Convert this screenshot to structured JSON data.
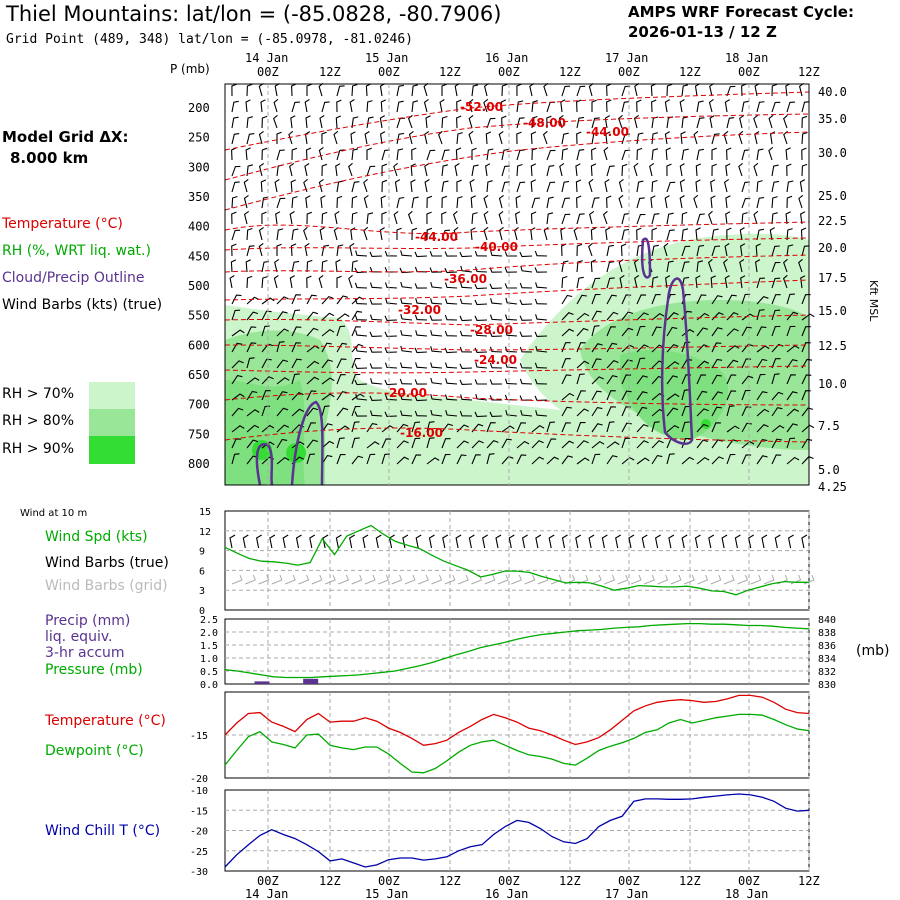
{
  "header": {
    "title": "Thiel Mountains:  lat/lon = (-85.0828, -80.7906)",
    "grid_point": "Grid Point (489, 348) lat/lon = (-85.0978, -81.0246)",
    "forecast_label": "AMPS WRF Forecast Cycle:",
    "forecast_cycle": "2026-01-13 / 12  Z"
  },
  "side": {
    "model_grid_label": "Model Grid ΔX:",
    "model_grid_value": "8.000 km",
    "legend_temperature": "Temperature (°C)",
    "legend_rh": "RH (%, WRT liq. wat.)",
    "legend_cloud": "Cloud/Precip Outline",
    "legend_wind": "Wind Barbs (kts) (true)",
    "rh70": "RH > 70%",
    "rh80": "RH > 80%",
    "rh90": "RH > 90%",
    "wind10_label": "Wind at 10 m",
    "wind_spd": "Wind Spd (kts)",
    "wind_barbs_true": "Wind Barbs (true)",
    "wind_barbs_grid": "Wind Barbs (grid)",
    "precip_l1": "Precip (mm)",
    "precip_l2": "liq. equiv.",
    "precip_l3": "3-hr accum",
    "pressure": "Pressure (mb)",
    "mb_unit": "(mb)",
    "temperature": "Temperature (°C)",
    "dewpoint": "Dewpoint (°C)",
    "windchill": "Wind Chill T (°C)",
    "p_unit": "P (mb)",
    "kft_label": "Kft MSL"
  },
  "colors": {
    "temperature": "#dd0000",
    "rh": "#00aa00",
    "cloud": "#5a3390",
    "wind": "#000000",
    "wind_grid": "#aaaaaa",
    "pressure": "#00aa00",
    "windchill": "#0000aa",
    "rh70": "#ccf5cc",
    "rh80": "#99e699",
    "rh90": "#33dd33",
    "grid": "#aaaaaa"
  },
  "chart_data": [
    {
      "type": "heatmap",
      "name": "vertical_profile",
      "x_ticks_top": [
        "00Z",
        "12Z",
        "00Z",
        "12Z",
        "00Z",
        "12Z",
        "00Z",
        "12Z",
        "00Z",
        "12Z"
      ],
      "x_ticks_bottom": [
        "00Z",
        "12Z",
        "00Z",
        "12Z",
        "00Z",
        "12Z",
        "00Z",
        "12Z",
        "00Z",
        "12Z"
      ],
      "day_labels": [
        "14 Jan",
        "15 Jan",
        "16 Jan",
        "17 Jan",
        "18 Jan"
      ],
      "pressure_ticks": [
        200,
        250,
        300,
        350,
        400,
        450,
        500,
        550,
        600,
        650,
        700,
        750,
        800
      ],
      "kft_ticks": [
        "40.0",
        "35.0",
        "30.0",
        "25.0",
        "22.5",
        "20.0",
        "17.5",
        "15.0",
        "12.5",
        "10.0",
        "7.5",
        "5.0",
        "4.25"
      ],
      "temperature_isotherms": [
        "-52.00",
        "-48.00",
        "-44.00",
        "-44.00",
        "-40.00",
        "-36.00",
        "-32.00",
        "-28.00",
        "-24.00",
        "-20.00",
        "-16.00"
      ],
      "rh_levels": [
        "> 70%",
        "> 80%",
        "> 90%"
      ]
    },
    {
      "type": "line",
      "name": "wind_speed_10m",
      "ylim": [
        0,
        15
      ],
      "y_ticks": [
        0,
        3,
        6,
        9,
        12,
        15
      ],
      "x_hours": [
        0,
        3,
        6,
        9,
        12,
        15,
        18,
        21,
        24,
        27,
        30,
        33,
        36,
        39,
        42,
        45,
        48,
        51,
        54,
        57,
        60,
        63,
        66,
        69,
        72,
        75,
        78,
        81,
        84,
        87,
        90,
        93,
        96,
        99,
        102,
        105,
        108,
        111,
        114,
        117,
        120,
        123,
        126,
        129,
        132,
        135,
        138,
        141,
        144
      ],
      "values": [
        9.5,
        8.6,
        7.8,
        7.4,
        7.3,
        7.1,
        6.8,
        7.2,
        10.8,
        8.4,
        11.2,
        12.0,
        12.8,
        11.5,
        10.4,
        9.8,
        9.3,
        8.3,
        7.4,
        6.7,
        6.0,
        5.0,
        5.4,
        5.9,
        5.9,
        5.7,
        5.1,
        4.6,
        4.1,
        4.2,
        4.1,
        3.6,
        3.0,
        3.3,
        3.7,
        3.6,
        3.5,
        3.5,
        3.6,
        3.3,
        2.9,
        2.8,
        2.3,
        3.0,
        3.5,
        4.0,
        4.3,
        4.2,
        4.2
      ]
    },
    {
      "type": "line",
      "name": "pressure_precip",
      "precip_ylim": [
        0,
        2.5
      ],
      "precip_ticks": [
        "0.0",
        "0.5",
        "1.0",
        "1.5",
        "2.0",
        "2.5"
      ],
      "pressure_ticks": [
        "830",
        "832",
        "834",
        "836",
        "838",
        "840"
      ],
      "pressure_ylim": [
        830,
        840
      ],
      "pressure": [
        832.2,
        832.0,
        831.7,
        831.4,
        831.1,
        831.0,
        831.0,
        831.0,
        831.1,
        831.2,
        831.3,
        831.4,
        831.6,
        831.8,
        832.0,
        832.4,
        832.8,
        833.3,
        833.9,
        834.5,
        835.0,
        835.6,
        836.0,
        836.4,
        836.9,
        837.3,
        837.6,
        837.8,
        838.0,
        838.2,
        838.3,
        838.4,
        838.6,
        838.7,
        838.8,
        839.0,
        839.1,
        839.2,
        839.3,
        839.3,
        839.2,
        839.2,
        839.1,
        839.0,
        839.0,
        838.9,
        838.7,
        838.6,
        838.5
      ],
      "precip_x_hours": [
        9,
        21
      ],
      "precip": [
        0.1,
        0.2
      ]
    },
    {
      "type": "line",
      "name": "temperature_dewpoint",
      "ylim": [
        -20,
        -10
      ],
      "y_ticks": [
        "-20",
        "-15"
      ],
      "temperature": [
        -15.0,
        -13.6,
        -12.5,
        -12.4,
        -13.5,
        -14.0,
        -14.6,
        -13.2,
        -12.5,
        -13.5,
        -13.4,
        -13.4,
        -13.0,
        -13.4,
        -14.2,
        -14.7,
        -15.4,
        -16.2,
        -16.0,
        -15.6,
        -14.7,
        -14.0,
        -13.2,
        -12.6,
        -13.0,
        -13.5,
        -14.2,
        -14.5,
        -15.0,
        -15.6,
        -16.1,
        -15.8,
        -15.3,
        -14.4,
        -13.3,
        -12.2,
        -11.6,
        -11.2,
        -11.0,
        -10.9,
        -11.0,
        -11.2,
        -11.1,
        -10.8,
        -10.4,
        -10.4,
        -10.6,
        -11.2,
        -12.0,
        -12.4,
        -12.5
      ],
      "dewpoint": [
        -18.5,
        -16.8,
        -15.2,
        -14.6,
        -15.8,
        -16.1,
        -16.5,
        -15.0,
        -14.9,
        -16.2,
        -16.5,
        -16.7,
        -16.4,
        -16.4,
        -17.2,
        -18.3,
        -19.3,
        -19.4,
        -18.9,
        -18.0,
        -17.0,
        -16.2,
        -15.8,
        -15.6,
        -16.2,
        -16.8,
        -17.3,
        -17.5,
        -17.8,
        -18.3,
        -18.5,
        -17.7,
        -16.8,
        -16.3,
        -15.9,
        -15.4,
        -14.7,
        -14.4,
        -13.6,
        -13.2,
        -13.6,
        -13.3,
        -13.0,
        -12.8,
        -12.6,
        -12.6,
        -12.7,
        -13.2,
        -13.8,
        -14.3,
        -14.5
      ]
    },
    {
      "type": "line",
      "name": "wind_chill",
      "ylim": [
        -30,
        -10
      ],
      "y_ticks": [
        "-10",
        "-15",
        "-20",
        "-25",
        "-30"
      ],
      "values": [
        -29.0,
        -26.0,
        -23.5,
        -21.2,
        -19.8,
        -21.0,
        -22.0,
        -23.5,
        -25.2,
        -27.5,
        -27.0,
        -28.0,
        -29.0,
        -28.5,
        -27.2,
        -26.8,
        -26.8,
        -27.3,
        -27.0,
        -26.5,
        -25.0,
        -24.0,
        -23.5,
        -21.0,
        -19.0,
        -17.5,
        -18.0,
        -19.5,
        -21.5,
        -22.8,
        -23.2,
        -22.0,
        -19.0,
        -17.5,
        -16.5,
        -12.8,
        -12.2,
        -12.2,
        -12.3,
        -12.3,
        -12.2,
        -11.8,
        -11.5,
        -11.2,
        -11.0,
        -11.2,
        -11.8,
        -12.8,
        -14.5,
        -15.2,
        -15.0
      ]
    }
  ]
}
